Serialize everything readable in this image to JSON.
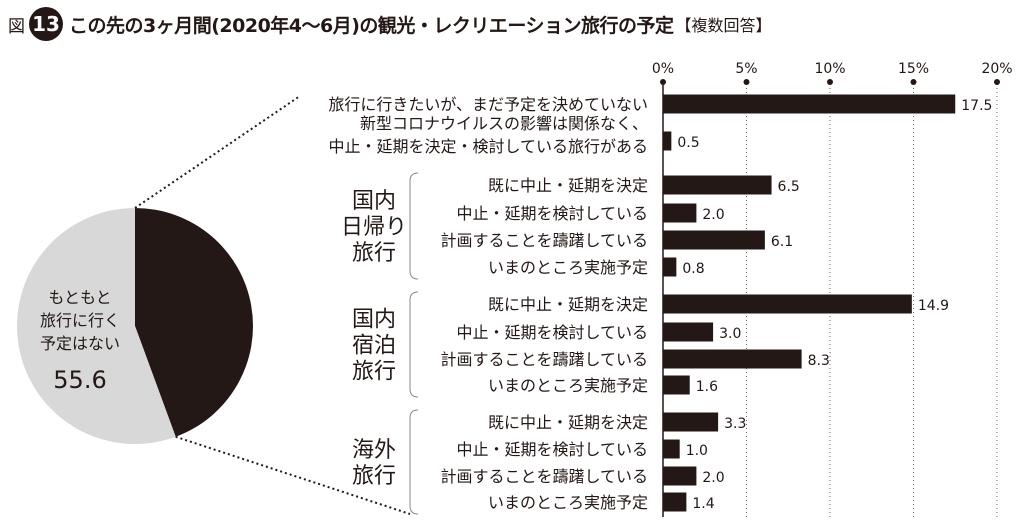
{
  "header": {
    "figure_label": "図",
    "figure_number": "13",
    "title": "この先の3ヶ月間(2020年4〜6月)の観光・レクリエーション旅行の予定",
    "title_suffix": "【複数回答】"
  },
  "colors": {
    "bar": "#231815",
    "pie_dark": "#231815",
    "pie_light": "#d9d8d8",
    "text": "#231815"
  },
  "chart_data": [
    {
      "type": "pie",
      "slices": [
        {
          "label": "",
          "value": 44.4,
          "color": "#231815"
        },
        {
          "label": "もともと旅行に行く予定はない",
          "value": 55.6,
          "color": "#d9d8d8"
        }
      ],
      "center_label_lines": [
        "もともと",
        "旅行に行く",
        "予定はない"
      ],
      "center_value": "55.6"
    },
    {
      "type": "bar",
      "orientation": "horizontal",
      "xlim": [
        0,
        20
      ],
      "ticks": [
        "0%",
        "5%",
        "10%",
        "15%",
        "20%"
      ],
      "tick_values": [
        0,
        5,
        10,
        15,
        20
      ],
      "groups": [
        {
          "name": "",
          "items": [
            {
              "label_lines": [
                "旅行に行きたいが、まだ予定を決めていない"
              ],
              "value": 17.5,
              "value_label": "17.5"
            },
            {
              "label_lines": [
                "新型コロナウイルスの影響は関係なく、",
                "中止・延期を決定・検討している旅行がある"
              ],
              "value": 0.5,
              "value_label": "0.5"
            }
          ]
        },
        {
          "name_lines": [
            "国内",
            "日帰り",
            "旅行"
          ],
          "items": [
            {
              "label_lines": [
                "既に中止・延期を決定"
              ],
              "value": 6.5,
              "value_label": "6.5"
            },
            {
              "label_lines": [
                "中止・延期を検討している"
              ],
              "value": 2.0,
              "value_label": "2.0"
            },
            {
              "label_lines": [
                "計画することを躊躇している"
              ],
              "value": 6.1,
              "value_label": "6.1"
            },
            {
              "label_lines": [
                "いまのところ実施予定"
              ],
              "value": 0.8,
              "value_label": "0.8"
            }
          ]
        },
        {
          "name_lines": [
            "国内",
            "宿泊",
            "旅行"
          ],
          "items": [
            {
              "label_lines": [
                "既に中止・延期を決定"
              ],
              "value": 14.9,
              "value_label": "14.9"
            },
            {
              "label_lines": [
                "中止・延期を検討している"
              ],
              "value": 3.0,
              "value_label": "3.0"
            },
            {
              "label_lines": [
                "計画することを躊躇している"
              ],
              "value": 8.3,
              "value_label": "8.3"
            },
            {
              "label_lines": [
                "いまのところ実施予定"
              ],
              "value": 1.6,
              "value_label": "1.6"
            }
          ]
        },
        {
          "name_lines": [
            "海外",
            "旅行"
          ],
          "items": [
            {
              "label_lines": [
                "既に中止・延期を決定"
              ],
              "value": 3.3,
              "value_label": "3.3"
            },
            {
              "label_lines": [
                "中止・延期を検討している"
              ],
              "value": 1.0,
              "value_label": "1.0"
            },
            {
              "label_lines": [
                "計画することを躊躇している"
              ],
              "value": 2.0,
              "value_label": "2.0"
            },
            {
              "label_lines": [
                "いまのところ実施予定"
              ],
              "value": 1.4,
              "value_label": "1.4"
            }
          ]
        }
      ]
    }
  ]
}
